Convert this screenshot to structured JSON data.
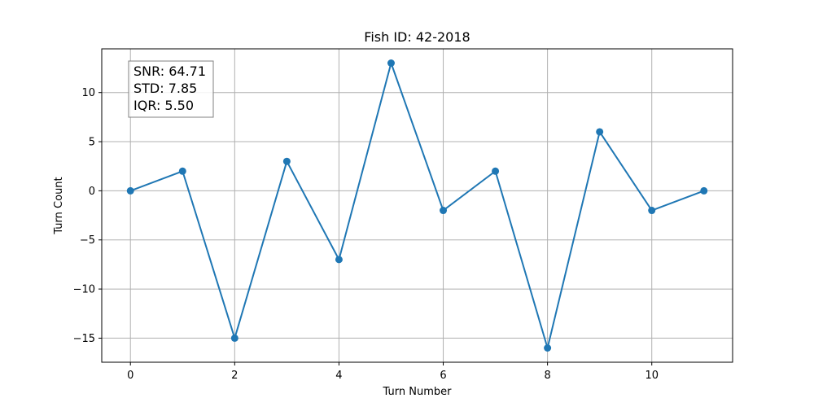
{
  "chart_data": {
    "type": "line",
    "title": "Fish ID: 42-2018",
    "xlabel": "Turn Number",
    "ylabel": "Turn Count",
    "x": [
      0,
      1,
      2,
      3,
      4,
      5,
      6,
      7,
      8,
      9,
      10,
      11
    ],
    "series": [
      {
        "values": [
          0,
          2,
          -15,
          3,
          -7,
          13,
          -2,
          2,
          -16,
          6,
          -2,
          0
        ],
        "color": "#1f77b4",
        "marker": "circle"
      }
    ],
    "xlim": [
      -0.55,
      11.55
    ],
    "ylim": [
      -17.45,
      14.45
    ],
    "xticks": [
      0,
      2,
      4,
      6,
      8,
      10
    ],
    "yticks": [
      -15,
      -10,
      -5,
      0,
      5,
      10
    ],
    "xtick_labels": [
      "0",
      "2",
      "4",
      "6",
      "8",
      "10"
    ],
    "ytick_labels": [
      "−15",
      "−10",
      "−5",
      "0",
      "5",
      "10"
    ],
    "grid": true,
    "annotation": {
      "lines": [
        "SNR: 64.71",
        "STD: 7.85",
        "IQR: 5.50"
      ],
      "placement": "top-left"
    }
  }
}
